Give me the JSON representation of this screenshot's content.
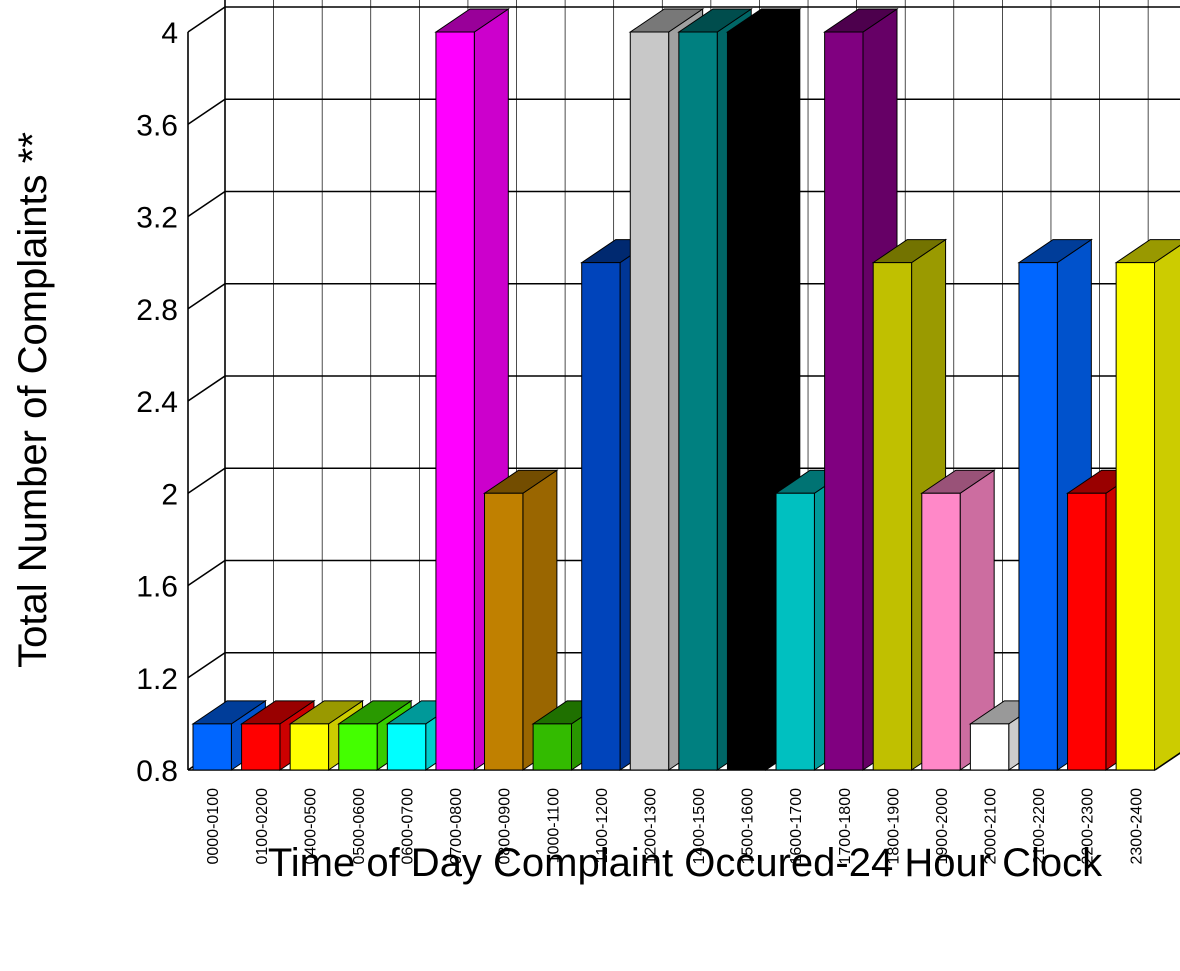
{
  "chart_data": {
    "type": "bar3d",
    "x_label": "Time of Day Complaint Occured-24 Hour Clock",
    "y_label": "Total Number of Complaints **",
    "categories": [
      "0000-0100",
      "0100-0200",
      "0400-0500",
      "0500-0600",
      "0600-0700",
      "0700-0800",
      "0800-0900",
      "1000-1100",
      "1100-1200",
      "1200-1300",
      "1400-1500",
      "1500-1600",
      "1600-1700",
      "1700-1800",
      "1800-1900",
      "1900-2000",
      "2000-2100",
      "2100-2200",
      "2200-2300",
      "2300-2400"
    ],
    "values": [
      1,
      1,
      1,
      1,
      1,
      4,
      2,
      1,
      3,
      4,
      4,
      4,
      2,
      4,
      3,
      2,
      1,
      3,
      2,
      3
    ],
    "colors": [
      "#0066ff",
      "#ff0000",
      "#ffff00",
      "#44ff00",
      "#00ffff",
      "#ff00ff",
      "#c08000",
      "#33bb00",
      "#0044bb",
      "#c8c8c8",
      "#008080",
      "#000000",
      "#00c0c0",
      "#800080",
      "#c0c000",
      "#ff88c8",
      "#ffffff",
      "#0066ff",
      "#ff0000",
      "#ffff00"
    ],
    "ylim": [
      0.8,
      4
    ],
    "yticks": [
      0.8,
      1.2,
      1.6,
      2,
      2.4,
      2.8,
      3.2,
      3.6,
      4
    ],
    "grid": true
  }
}
